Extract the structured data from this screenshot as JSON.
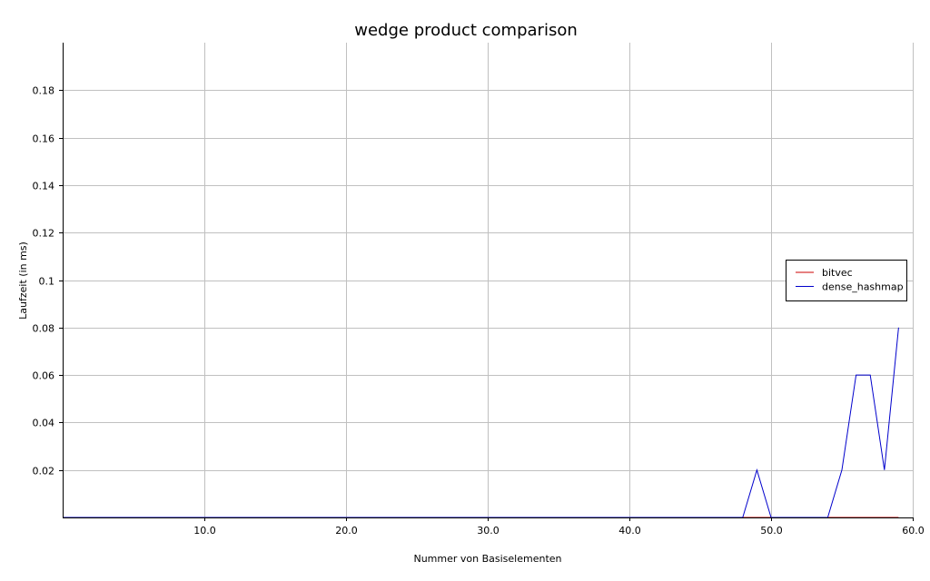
{
  "chart_data": {
    "type": "line",
    "title": "wedge product comparison",
    "xlabel": "Nummer von Basiselementen",
    "ylabel": "Laufzeit (in ms)",
    "xlim": [
      0,
      60
    ],
    "ylim": [
      0,
      0.2
    ],
    "x_ticks": [
      {
        "value": 10,
        "label": "10.0"
      },
      {
        "value": 20,
        "label": "20.0"
      },
      {
        "value": 30,
        "label": "30.0"
      },
      {
        "value": 40,
        "label": "40.0"
      },
      {
        "value": 50,
        "label": "50.0"
      },
      {
        "value": 60,
        "label": "60.0"
      }
    ],
    "y_ticks": [
      {
        "value": 0.02,
        "label": "0.02"
      },
      {
        "value": 0.04,
        "label": "0.04"
      },
      {
        "value": 0.06,
        "label": "0.06"
      },
      {
        "value": 0.08,
        "label": "0.08"
      },
      {
        "value": 0.1,
        "label": "0.1"
      },
      {
        "value": 0.12,
        "label": "0.12"
      },
      {
        "value": 0.14,
        "label": "0.14"
      },
      {
        "value": 0.16,
        "label": "0.16"
      },
      {
        "value": 0.18,
        "label": "0.18"
      }
    ],
    "grid": true,
    "legend_position": "right",
    "x": [
      0,
      1,
      2,
      3,
      4,
      5,
      6,
      7,
      8,
      9,
      10,
      11,
      12,
      13,
      14,
      15,
      16,
      17,
      18,
      19,
      20,
      21,
      22,
      23,
      24,
      25,
      26,
      27,
      28,
      29,
      30,
      31,
      32,
      33,
      34,
      35,
      36,
      37,
      38,
      39,
      40,
      41,
      42,
      43,
      44,
      45,
      46,
      47,
      48,
      49,
      50,
      51,
      52,
      53,
      54,
      55,
      56,
      57,
      58,
      59
    ],
    "series": [
      {
        "name": "bitvec",
        "color": "#cc0000",
        "values": [
          0,
          0,
          0,
          0,
          0,
          0,
          0,
          0,
          0,
          0,
          0,
          0,
          0,
          0,
          0,
          0,
          0,
          0,
          0,
          0,
          0,
          0,
          0,
          0,
          0,
          0,
          0,
          0,
          0,
          0,
          0,
          0,
          0,
          0,
          0,
          0,
          0,
          0,
          0,
          0,
          0,
          0,
          0,
          0,
          0,
          0,
          0,
          0,
          0,
          0,
          0,
          0,
          0,
          0,
          0,
          0,
          0,
          0,
          0,
          0
        ]
      },
      {
        "name": "dense_hashmap",
        "color": "#0000cc",
        "values": [
          0,
          0,
          0,
          0,
          0,
          0,
          0,
          0,
          0,
          0,
          0,
          0,
          0,
          0,
          0,
          0,
          0,
          0,
          0,
          0,
          0,
          0,
          0,
          0,
          0,
          0,
          0,
          0,
          0,
          0,
          0,
          0,
          0,
          0,
          0,
          0,
          0,
          0,
          0,
          0,
          0,
          0,
          0,
          0,
          0,
          0,
          0,
          0,
          0,
          0.02,
          0,
          0,
          0,
          0,
          0,
          0.02,
          0.06,
          0.06,
          0.02,
          0.08
        ]
      }
    ]
  }
}
